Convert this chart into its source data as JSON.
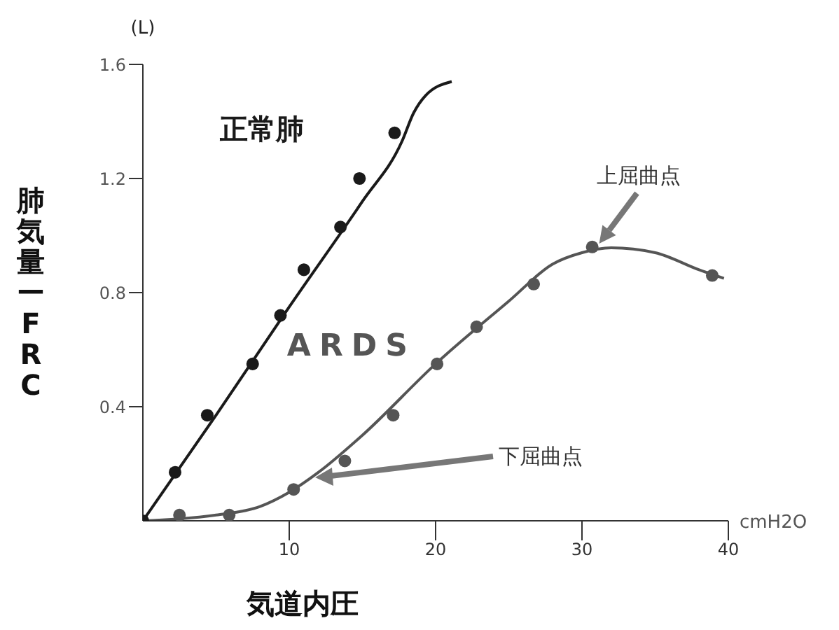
{
  "chart_data": {
    "type": "line",
    "xlabel": "気道内圧",
    "ylabel": "肺気量ーFRC",
    "annotations": [
      "(L)",
      "cmH2O",
      {
        "text": "上屈曲点",
        "x": 31,
        "y": 0.96
      },
      "下屈曲点"
    ],
    "xlim": [
      0,
      40
    ],
    "xticks": [
      10,
      20,
      30,
      40
    ],
    "ylim": [
      0,
      1.6
    ],
    "yticks": [
      0.4,
      0.8,
      1.2,
      1.6
    ],
    "grid": false,
    "legend": false,
    "line_style": "solid",
    "series": [
      {
        "name": "正常肺",
        "marker": "none",
        "color": "#1a1a1a",
        "x": [
          0,
          5,
          10,
          15,
          17.7,
          18.5,
          19.3,
          21.1
        ],
        "values": [
          0,
          0.37,
          0.75,
          1.12,
          1.33,
          1.43,
          1.49,
          1.54
        ]
      },
      {
        "type": "scatter",
        "marker": "circle",
        "color": "#1a1a1a",
        "x": [
          0,
          2.2,
          4.4,
          7.5,
          9.4,
          11,
          13.5,
          14.8,
          17.2
        ],
        "values": [
          0,
          0.17,
          0.37,
          0.55,
          0.72,
          0.88,
          1.03,
          1.2,
          1.36
        ]
      },
      {
        "name": "ARDS",
        "marker": "none",
        "color": "#555555",
        "x": [
          0,
          5,
          8,
          10,
          12,
          15,
          20,
          25,
          28,
          30,
          32,
          35,
          38,
          39.7
        ],
        "values": [
          0,
          0.02,
          0.05,
          0.1,
          0.17,
          0.3,
          0.55,
          0.77,
          0.9,
          0.94,
          0.957,
          0.94,
          0.88,
          0.85
        ]
      },
      {
        "type": "scatter",
        "marker": "circle",
        "color": "#555555",
        "x": [
          2.5,
          5.9,
          10.3,
          13.8,
          17.1,
          20.1,
          22.8,
          26.7,
          30.7,
          38.9
        ],
        "values": [
          0.02,
          0.02,
          0.11,
          0.21,
          0.37,
          0.55,
          0.68,
          0.83,
          0.96,
          0.86
        ]
      }
    ]
  }
}
